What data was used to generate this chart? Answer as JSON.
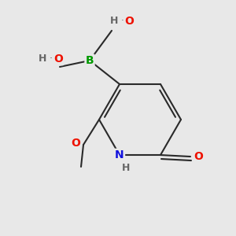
{
  "bg_color": "#e8e8e8",
  "bond_color": "#2a2a2a",
  "bond_width": 1.5,
  "atom_colors": {
    "B": "#009900",
    "O": "#ee1100",
    "N": "#1111dd",
    "H": "#666666",
    "C": "#2a2a2a"
  },
  "font_size": 10,
  "font_size_H": 9,
  "font_size_label": 9
}
